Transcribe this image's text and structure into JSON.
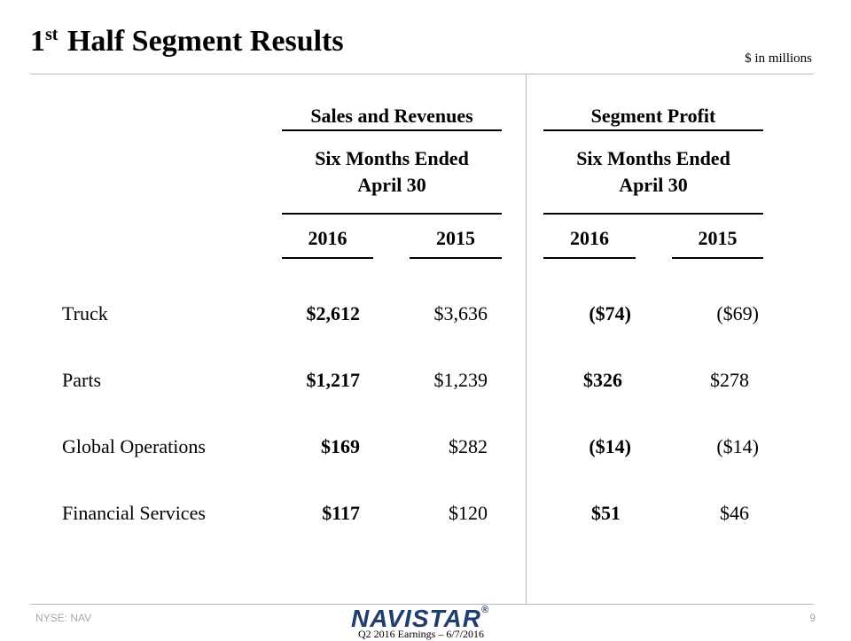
{
  "title": {
    "number": "1",
    "suffix": "st",
    "rest": "Half Segment Results"
  },
  "units": "$ in millions",
  "groups": {
    "sales": {
      "title": "Sales and Revenues",
      "period_line1": "Six Months Ended",
      "period_line2": "April 30"
    },
    "profit": {
      "title": "Segment Profit",
      "period_line1": "Six Months Ended",
      "period_line2": "April 30"
    }
  },
  "years": [
    "2016",
    "2015",
    "2016",
    "2015"
  ],
  "rows": [
    {
      "label": "Truck",
      "sales_2016": "$2,612",
      "sales_2015": "$3,636",
      "profit_2016": "($74)",
      "profit_2015": "($69)"
    },
    {
      "label": "Parts",
      "sales_2016": "$1,217",
      "sales_2015": "$1,239",
      "profit_2016": "$326",
      "profit_2015": "$278"
    },
    {
      "label": "Global Operations",
      "sales_2016": "$169",
      "sales_2015": "$282",
      "profit_2016": "($14)",
      "profit_2015": "($14)"
    },
    {
      "label": "Financial Services",
      "sales_2016": "$117",
      "sales_2015": "$120",
      "profit_2016": "$51",
      "profit_2015": "$46"
    }
  ],
  "footer": {
    "ticker": "NYSE: NAV",
    "logo_text": "NAVISTAR",
    "logo_mark": "®",
    "caption": "Q2 2016 Earnings – 6/7/2016",
    "page_number": "9"
  }
}
